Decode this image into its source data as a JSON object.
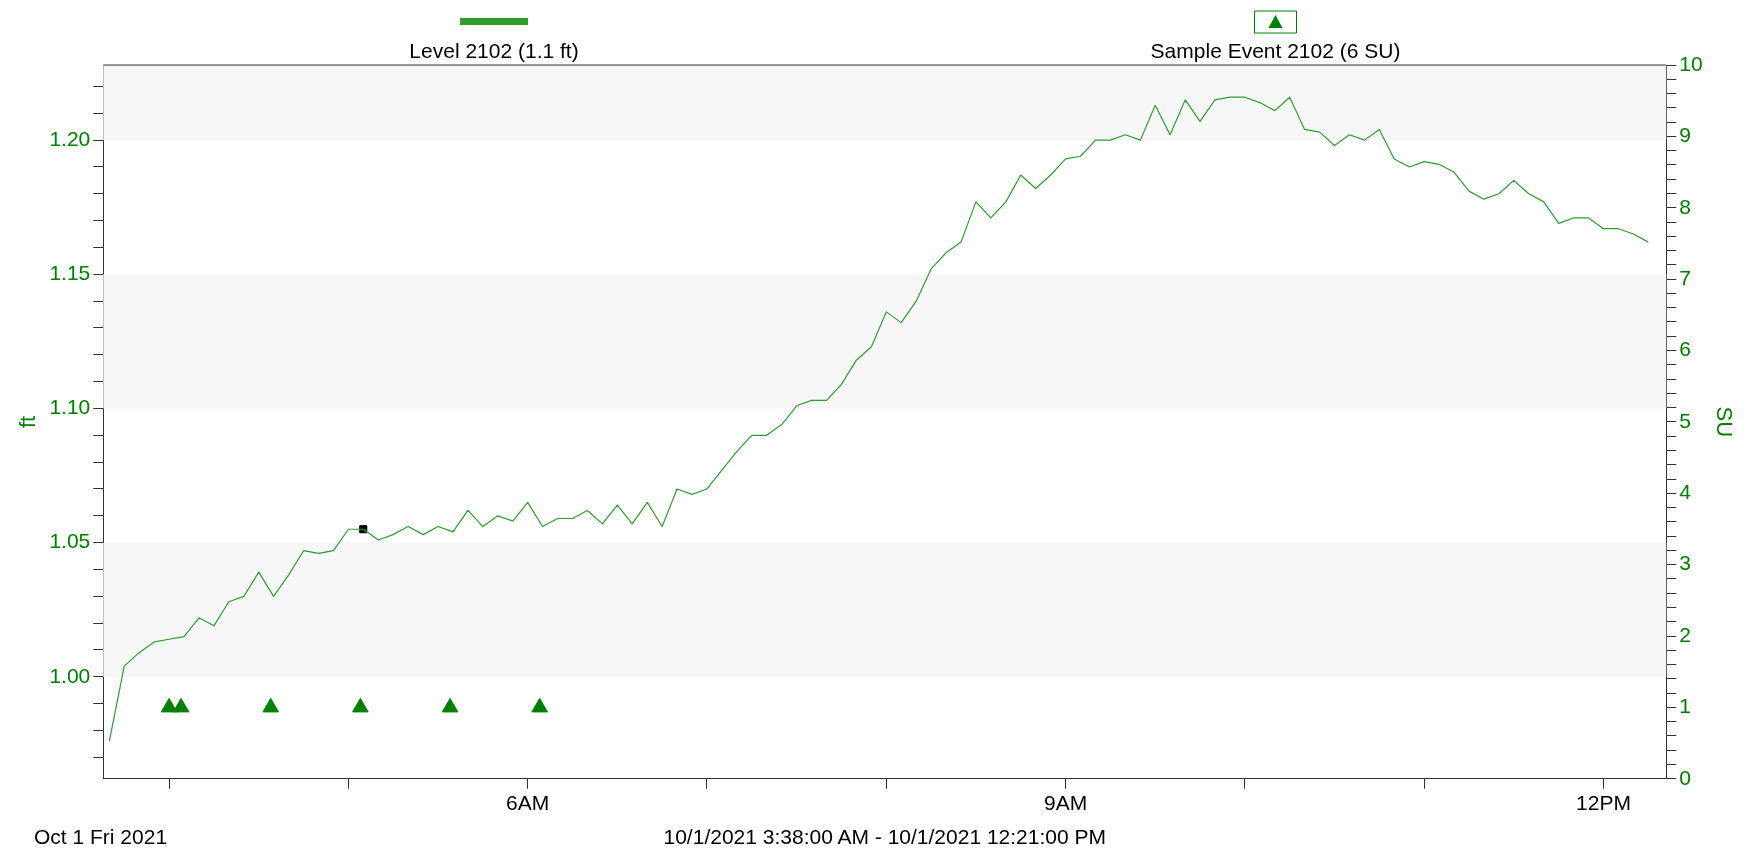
{
  "chart_data": {
    "type": "line",
    "ylabel": "ft",
    "y2label": "SU",
    "legend": "top",
    "grid": false,
    "xlim": [
      3.633,
      12.35
    ],
    "xticks": [
      {
        "value": 4,
        "label": null
      },
      {
        "value": 5,
        "label": null
      },
      {
        "value": 6,
        "label": "6AM"
      },
      {
        "value": 7,
        "label": null
      },
      {
        "value": 8,
        "label": null
      },
      {
        "value": 9,
        "label": "9AM"
      },
      {
        "value": 10,
        "label": null
      },
      {
        "value": 11,
        "label": null
      },
      {
        "value": 12,
        "label": "12PM"
      }
    ],
    "ylim": [
      0.962,
      1.228
    ],
    "yticks": [
      {
        "value": 0.97,
        "label": null
      },
      {
        "value": 0.98,
        "label": null
      },
      {
        "value": 0.99,
        "label": null
      },
      {
        "value": 1.0,
        "label": "1.00"
      },
      {
        "value": 1.01,
        "label": null
      },
      {
        "value": 1.02,
        "label": null
      },
      {
        "value": 1.03,
        "label": null
      },
      {
        "value": 1.04,
        "label": null
      },
      {
        "value": 1.05,
        "label": "1.05"
      },
      {
        "value": 1.06,
        "label": null
      },
      {
        "value": 1.07,
        "label": null
      },
      {
        "value": 1.08,
        "label": null
      },
      {
        "value": 1.09,
        "label": null
      },
      {
        "value": 1.1,
        "label": "1.10"
      },
      {
        "value": 1.11,
        "label": null
      },
      {
        "value": 1.12,
        "label": null
      },
      {
        "value": 1.13,
        "label": null
      },
      {
        "value": 1.14,
        "label": null
      },
      {
        "value": 1.15,
        "label": "1.15"
      },
      {
        "value": 1.16,
        "label": null
      },
      {
        "value": 1.17,
        "label": null
      },
      {
        "value": 1.18,
        "label": null
      },
      {
        "value": 1.19,
        "label": null
      },
      {
        "value": 1.2,
        "label": "1.20"
      },
      {
        "value": 1.21,
        "label": null
      },
      {
        "value": 1.22,
        "label": null
      }
    ],
    "y2lim": [
      0,
      10
    ],
    "y2ticks": [
      0,
      {
        "value": 0.2,
        "label": null
      },
      {
        "value": 0.4,
        "label": null
      },
      {
        "value": 0.6,
        "label": null
      },
      {
        "value": 0.8,
        "label": null
      },
      1,
      {
        "value": 1.2,
        "label": null
      },
      {
        "value": 1.4,
        "label": null
      },
      {
        "value": 1.6,
        "label": null
      },
      {
        "value": 1.8,
        "label": null
      },
      2,
      {
        "value": 2.2,
        "label": null
      },
      {
        "value": 2.4,
        "label": null
      },
      {
        "value": 2.6,
        "label": null
      },
      {
        "value": 2.8,
        "label": null
      },
      3,
      {
        "value": 3.2,
        "label": null
      },
      {
        "value": 3.4,
        "label": null
      },
      {
        "value": 3.6,
        "label": null
      },
      {
        "value": 3.8,
        "label": null
      },
      4,
      {
        "value": 4.2,
        "label": null
      },
      {
        "value": 4.4,
        "label": null
      },
      {
        "value": 4.6,
        "label": null
      },
      {
        "value": 4.8,
        "label": null
      },
      5,
      {
        "value": 5.2,
        "label": null
      },
      {
        "value": 5.4,
        "label": null
      },
      {
        "value": 5.6,
        "label": null
      },
      {
        "value": 5.8,
        "label": null
      },
      6,
      {
        "value": 6.2,
        "label": null
      },
      {
        "value": 6.4,
        "label": null
      },
      {
        "value": 6.6,
        "label": null
      },
      {
        "value": 6.8,
        "label": null
      },
      7,
      {
        "value": 7.2,
        "label": null
      },
      {
        "value": 7.4,
        "label": null
      },
      {
        "value": 7.6,
        "label": null
      },
      {
        "value": 7.8,
        "label": null
      },
      8,
      {
        "value": 8.2,
        "label": null
      },
      {
        "value": 8.4,
        "label": null
      },
      {
        "value": 8.6,
        "label": null
      },
      {
        "value": 8.8,
        "label": null
      },
      9,
      {
        "value": 9.2,
        "label": null
      },
      {
        "value": 9.4,
        "label": null
      },
      {
        "value": 9.6,
        "label": null
      },
      {
        "value": 9.8,
        "label": null
      },
      10
    ],
    "bands": [
      {
        "axis": "y",
        "from": 1.0,
        "to": 1.05,
        "color": "#f7f7f7"
      },
      {
        "axis": "y",
        "from": 1.1,
        "to": 1.15,
        "color": "#f7f7f7"
      },
      {
        "axis": "y",
        "from": 1.2,
        "to": 1.228,
        "color": "#f7f7f7"
      }
    ],
    "series": [
      {
        "name": "Level 2102 (1.1 ft)",
        "color": "#2e9e2e",
        "marker": "none",
        "line_style": "solid",
        "x": [
          3.667,
          3.75,
          3.833,
          3.917,
          4,
          4.083,
          4.167,
          4.25,
          4.333,
          4.417,
          4.5,
          4.583,
          4.667,
          4.75,
          4.833,
          4.917,
          5,
          5.083,
          5.167,
          5.25,
          5.333,
          5.417,
          5.5,
          5.583,
          5.667,
          5.75,
          5.833,
          5.917,
          6,
          6.083,
          6.167,
          6.25,
          6.333,
          6.417,
          6.5,
          6.583,
          6.667,
          6.75,
          6.833,
          6.917,
          7,
          7.083,
          7.167,
          7.25,
          7.333,
          7.417,
          7.5,
          7.583,
          7.667,
          7.75,
          7.833,
          7.917,
          8,
          8.083,
          8.167,
          8.25,
          8.333,
          8.417,
          8.5,
          8.583,
          8.667,
          8.75,
          8.833,
          8.917,
          9,
          9.083,
          9.167,
          9.25,
          9.333,
          9.417,
          9.5,
          9.583,
          9.667,
          9.75,
          9.833,
          9.917,
          10,
          10.083,
          10.167,
          10.25,
          10.333,
          10.417,
          10.5,
          10.583,
          10.667,
          10.75,
          10.833,
          10.917,
          11,
          11.083,
          11.167,
          11.25,
          11.333,
          11.417,
          11.5,
          11.583,
          11.667,
          11.75,
          11.833,
          11.917,
          12,
          12.083,
          12.167,
          12.25
        ],
        "values": [
          0.976,
          1.004,
          1.009,
          1.013,
          1.014,
          1.015,
          1.022,
          1.019,
          1.028,
          1.03,
          1.039,
          1.03,
          1.038,
          1.047,
          1.046,
          1.047,
          1.055,
          1.055,
          1.051,
          1.053,
          1.056,
          1.053,
          1.056,
          1.054,
          1.062,
          1.056,
          1.06,
          1.058,
          1.065,
          1.056,
          1.059,
          1.059,
          1.062,
          1.057,
          1.064,
          1.057,
          1.065,
          1.056,
          1.07,
          1.068,
          1.07,
          1.077,
          1.084,
          1.09,
          1.09,
          1.094,
          1.101,
          1.103,
          1.103,
          1.109,
          1.118,
          1.123,
          1.136,
          1.132,
          1.14,
          1.152,
          1.158,
          1.162,
          1.177,
          1.171,
          1.177,
          1.187,
          1.182,
          1.187,
          1.193,
          1.194,
          1.2,
          1.2,
          1.202,
          1.2,
          1.213,
          1.202,
          1.215,
          1.207,
          1.215,
          1.216,
          1.216,
          1.214,
          1.211,
          1.216,
          1.204,
          1.203,
          1.198,
          1.202,
          1.2,
          1.204,
          1.193,
          1.19,
          1.192,
          1.191,
          1.188,
          1.181,
          1.178,
          1.18,
          1.185,
          1.18,
          1.177,
          1.169,
          1.171,
          1.171,
          1.167,
          1.167,
          1.165,
          1.162
        ]
      },
      {
        "type": "scatter",
        "color": "#000000",
        "marker": "square",
        "x": [
          5.083
        ],
        "values": [
          1.055
        ]
      },
      {
        "name": "Sample Event 2102 (6 SU)",
        "type": "scatter",
        "axis": "y2",
        "color": "#008000",
        "marker": "triangle",
        "x": [
          4.0,
          4.067,
          4.567,
          5.067,
          5.567,
          6.067
        ],
        "values": [
          1,
          1,
          1,
          1,
          1,
          1
        ]
      }
    ],
    "annotations": [
      "Oct 1 Fri 2021",
      "10/1/2021 3:38:00 AM - 10/1/2021 12:21:00 PM"
    ]
  }
}
